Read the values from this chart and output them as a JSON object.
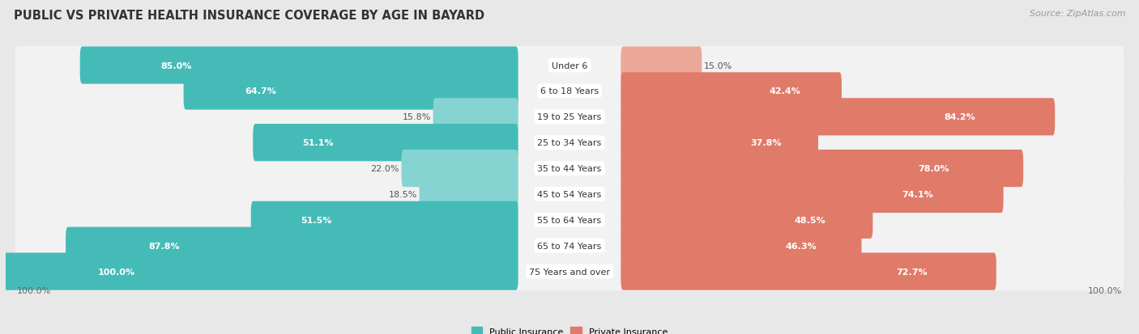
{
  "title": "PUBLIC VS PRIVATE HEALTH INSURANCE COVERAGE BY AGE IN BAYARD",
  "source": "Source: ZipAtlas.com",
  "categories": [
    "Under 6",
    "6 to 18 Years",
    "19 to 25 Years",
    "25 to 34 Years",
    "35 to 44 Years",
    "45 to 54 Years",
    "55 to 64 Years",
    "65 to 74 Years",
    "75 Years and over"
  ],
  "public_values": [
    85.0,
    64.7,
    15.8,
    51.1,
    22.0,
    18.5,
    51.5,
    87.8,
    100.0
  ],
  "private_values": [
    15.0,
    42.4,
    84.2,
    37.8,
    78.0,
    74.1,
    48.5,
    46.3,
    72.7
  ],
  "public_color": "#45bbb8",
  "private_color": "#e07b6a",
  "public_color_light": "#85d4d2",
  "private_color_light": "#eba898",
  "background_color": "#e8e8e8",
  "row_color": "#f2f2f2",
  "max_value": 100.0,
  "title_fontsize": 10.5,
  "label_fontsize": 8,
  "value_fontsize": 8,
  "source_fontsize": 8,
  "legend_fontsize": 8,
  "inside_text_threshold": 25
}
